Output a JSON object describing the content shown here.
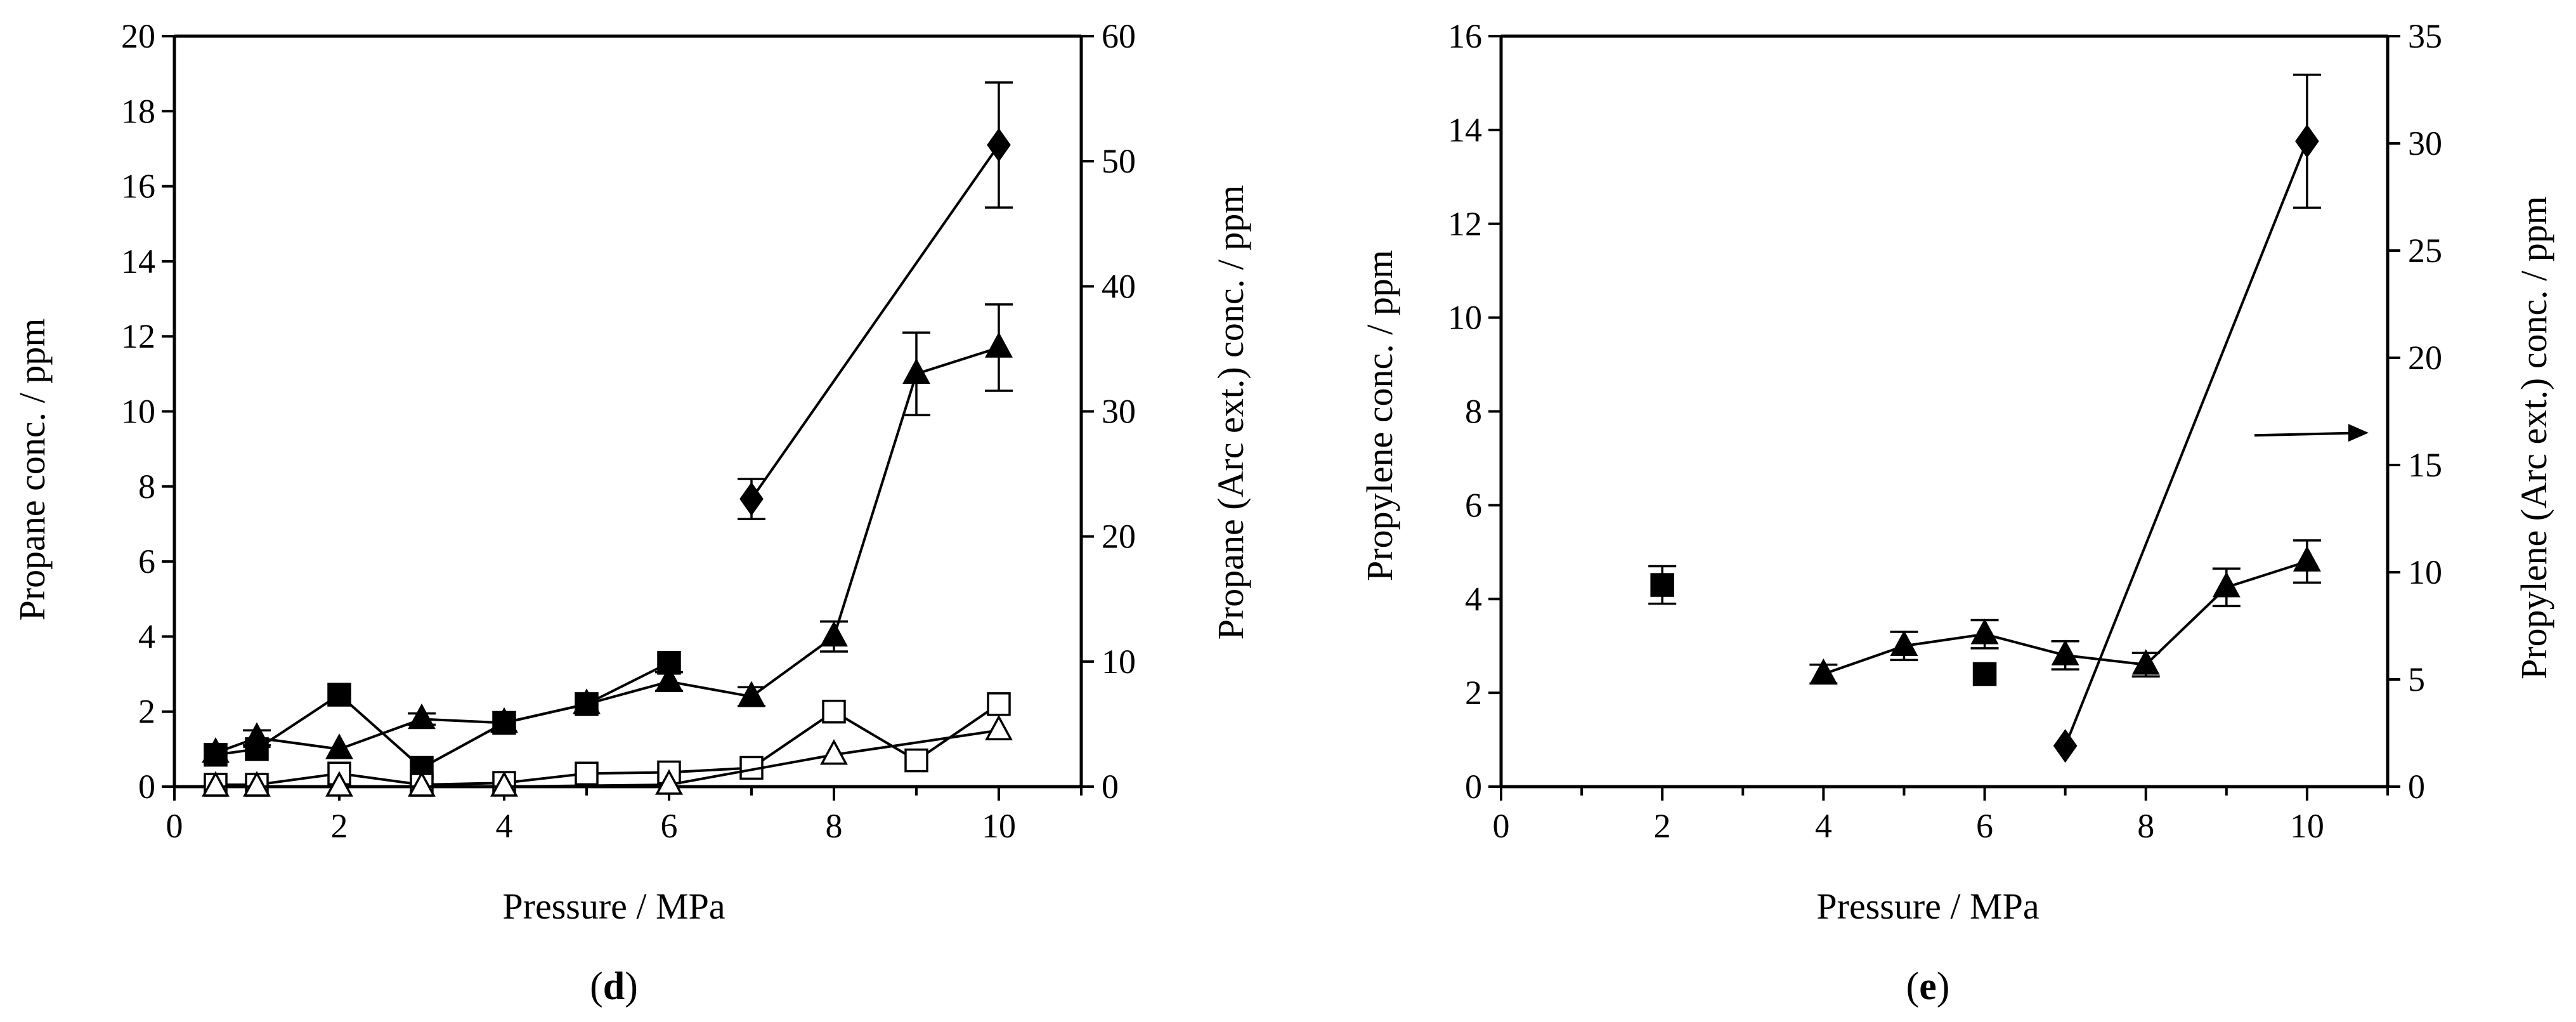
{
  "chart_data": [
    {
      "type": "line",
      "panel_label": "(d)",
      "panel_letter": "d",
      "xlabel": "Pressure / MPa",
      "ylabel": "Propane conc. / ppm",
      "y2label": "Propane (Arc ext.) conc. / ppm",
      "xlim": [
        0,
        11
      ],
      "ylim": [
        0,
        20
      ],
      "y2lim": [
        0,
        60
      ],
      "xticks": [
        "0",
        "2",
        "4",
        "6",
        "8",
        "10"
      ],
      "yticks": [
        "0",
        "2",
        "4",
        "6",
        "8",
        "10",
        "12",
        "14",
        "16",
        "18",
        "20"
      ],
      "y2ticks": [
        "0",
        "10",
        "20",
        "30",
        "40",
        "50",
        "60"
      ],
      "series": [
        {
          "name": "Arc ext. (filled diamond)",
          "marker": "diamond",
          "fill": "#000000",
          "axis": "right",
          "x": [
            7,
            10
          ],
          "y": [
            23,
            51.3
          ],
          "err": [
            1.6,
            5
          ]
        },
        {
          "name": "filled triangle",
          "marker": "triangle",
          "fill": "#000000",
          "axis": "left",
          "x": [
            0.5,
            1,
            2,
            3,
            4,
            5,
            6,
            7,
            8,
            9,
            10
          ],
          "y": [
            0.9,
            1.3,
            1.0,
            1.8,
            1.7,
            2.2,
            2.8,
            2.4,
            4.0,
            11.0,
            11.7
          ],
          "err": [
            0,
            0.2,
            0,
            0.15,
            0,
            0,
            0.25,
            0.25,
            0.4,
            1.1,
            1.15
          ]
        },
        {
          "name": "filled square",
          "marker": "square",
          "fill": "#000000",
          "axis": "left",
          "x": [
            0.5,
            1,
            2,
            3,
            4,
            5,
            6
          ],
          "y": [
            0.85,
            1.0,
            2.45,
            0.5,
            1.7,
            2.2,
            3.3
          ],
          "err": [
            0,
            0,
            0,
            0,
            0,
            0,
            0
          ]
        },
        {
          "name": "open square",
          "marker": "square",
          "fill": "#ffffff",
          "axis": "left",
          "x": [
            0.5,
            1,
            2,
            3,
            4,
            5,
            6,
            7,
            8,
            9,
            10
          ],
          "y": [
            0.05,
            0.05,
            0.35,
            0.05,
            0.1,
            0.35,
            0.38,
            0.5,
            2.0,
            0.7,
            2.2
          ],
          "err": [
            0,
            0,
            0,
            0,
            0,
            0,
            0,
            0,
            0,
            0,
            0
          ]
        },
        {
          "name": "open triangle",
          "marker": "triangle",
          "fill": "#ffffff",
          "axis": "left",
          "x": [
            0.5,
            1,
            2,
            3,
            4,
            6,
            8,
            10
          ],
          "y": [
            0,
            0,
            0,
            0,
            0,
            0.05,
            0.85,
            1.5
          ],
          "err": [
            0,
            0,
            0,
            0,
            0,
            0,
            0,
            0
          ]
        }
      ]
    },
    {
      "type": "line",
      "panel_label": "(e)",
      "panel_letter": "e",
      "xlabel": "Pressure / MPa",
      "ylabel": "Propylene conc. / ppm",
      "y2label": "Propylene (Arc ext.) conc. / ppm",
      "xlim": [
        0,
        11
      ],
      "ylim": [
        0,
        16
      ],
      "y2lim": [
        0,
        35
      ],
      "xticks": [
        "0",
        "2",
        "4",
        "6",
        "8",
        "10"
      ],
      "yticks": [
        "0",
        "2",
        "4",
        "6",
        "8",
        "10",
        "12",
        "14",
        "16"
      ],
      "y2ticks": [
        "0",
        "5",
        "10",
        "15",
        "20",
        "25",
        "30",
        "35"
      ],
      "annotations": [
        {
          "type": "arrow",
          "direction": "right",
          "points_to": "right axis",
          "at_y2": 16.5
        }
      ],
      "series": [
        {
          "name": "Arc ext. (filled diamond)",
          "marker": "diamond",
          "fill": "#000000",
          "axis": "right",
          "x": [
            7,
            10
          ],
          "y": [
            1.9,
            30.1
          ],
          "err": [
            0,
            3.1
          ]
        },
        {
          "name": "filled triangle",
          "marker": "triangle",
          "fill": "#000000",
          "axis": "left",
          "x": [
            4,
            5,
            6,
            7,
            8,
            9,
            10
          ],
          "y": [
            2.4,
            3.0,
            3.25,
            2.8,
            2.6,
            4.25,
            4.8
          ],
          "err": [
            0.2,
            0.3,
            0.3,
            0.3,
            0.25,
            0.4,
            0.45
          ]
        },
        {
          "name": "filled square",
          "marker": "square",
          "fill": "#000000",
          "axis": "left",
          "nolines": true,
          "x": [
            2,
            6
          ],
          "y": [
            4.3,
            2.4
          ],
          "err": [
            0.4,
            0
          ]
        }
      ]
    }
  ]
}
